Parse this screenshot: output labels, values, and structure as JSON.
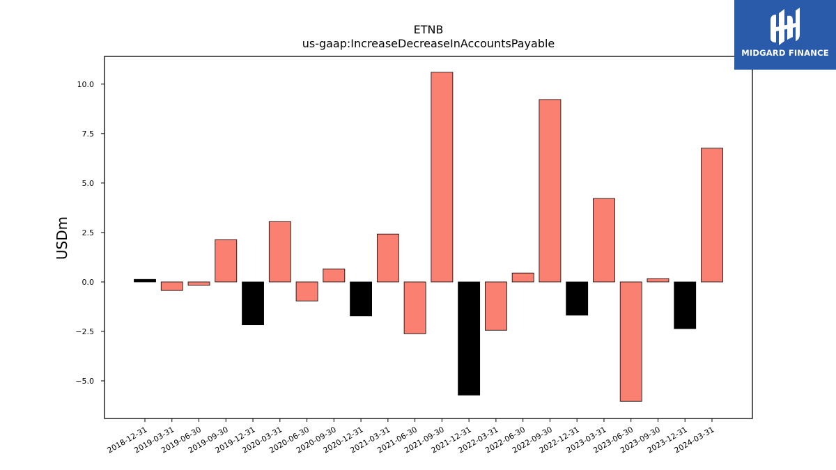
{
  "brand": {
    "name": "MIDGARD FINANCE",
    "bg_color": "#2a5aaa",
    "icon": "midgard-logo-icon"
  },
  "chart_data": {
    "type": "bar",
    "title": "ETNB",
    "subtitle": "us-gaap:IncreaseDecreaseInAccountsPayable",
    "ylabel": "USDm",
    "xlabel": "",
    "ylim": [
      -6.9,
      11.4
    ],
    "yticks": [
      -5.0,
      -2.5,
      0.0,
      2.5,
      5.0,
      7.5,
      10.0
    ],
    "ytick_labels": [
      "−5.0",
      "−2.5",
      "0.0",
      "2.5",
      "5.0",
      "7.5",
      "10.0"
    ],
    "categories": [
      "2018-12-31",
      "2019-03-31",
      "2019-06-30",
      "2019-09-30",
      "2019-12-31",
      "2020-03-31",
      "2020-06-30",
      "2020-09-30",
      "2020-12-31",
      "2021-03-31",
      "2021-06-30",
      "2021-09-30",
      "2021-12-31",
      "2022-03-31",
      "2022-06-30",
      "2022-09-30",
      "2022-12-31",
      "2023-03-31",
      "2023-06-30",
      "2023-09-30",
      "2023-12-31",
      "2024-03-31"
    ],
    "values": [
      0.13,
      -0.43,
      -0.17,
      2.14,
      -2.17,
      3.05,
      -0.96,
      0.66,
      -1.72,
      2.42,
      -2.62,
      10.6,
      -5.72,
      -2.44,
      0.45,
      9.22,
      -1.68,
      4.22,
      -6.03,
      0.17,
      -2.36,
      6.76
    ],
    "bar_colors": [
      "#000000",
      "#fa8072",
      "#fa8072",
      "#fa8072",
      "#000000",
      "#fa8072",
      "#fa8072",
      "#fa8072",
      "#000000",
      "#fa8072",
      "#fa8072",
      "#fa8072",
      "#000000",
      "#fa8072",
      "#fa8072",
      "#fa8072",
      "#000000",
      "#fa8072",
      "#fa8072",
      "#fa8072",
      "#000000",
      "#fa8072"
    ],
    "colors": {
      "quarter": "#fa8072",
      "year_end": "#000000"
    },
    "grid": false,
    "legend": "none"
  }
}
